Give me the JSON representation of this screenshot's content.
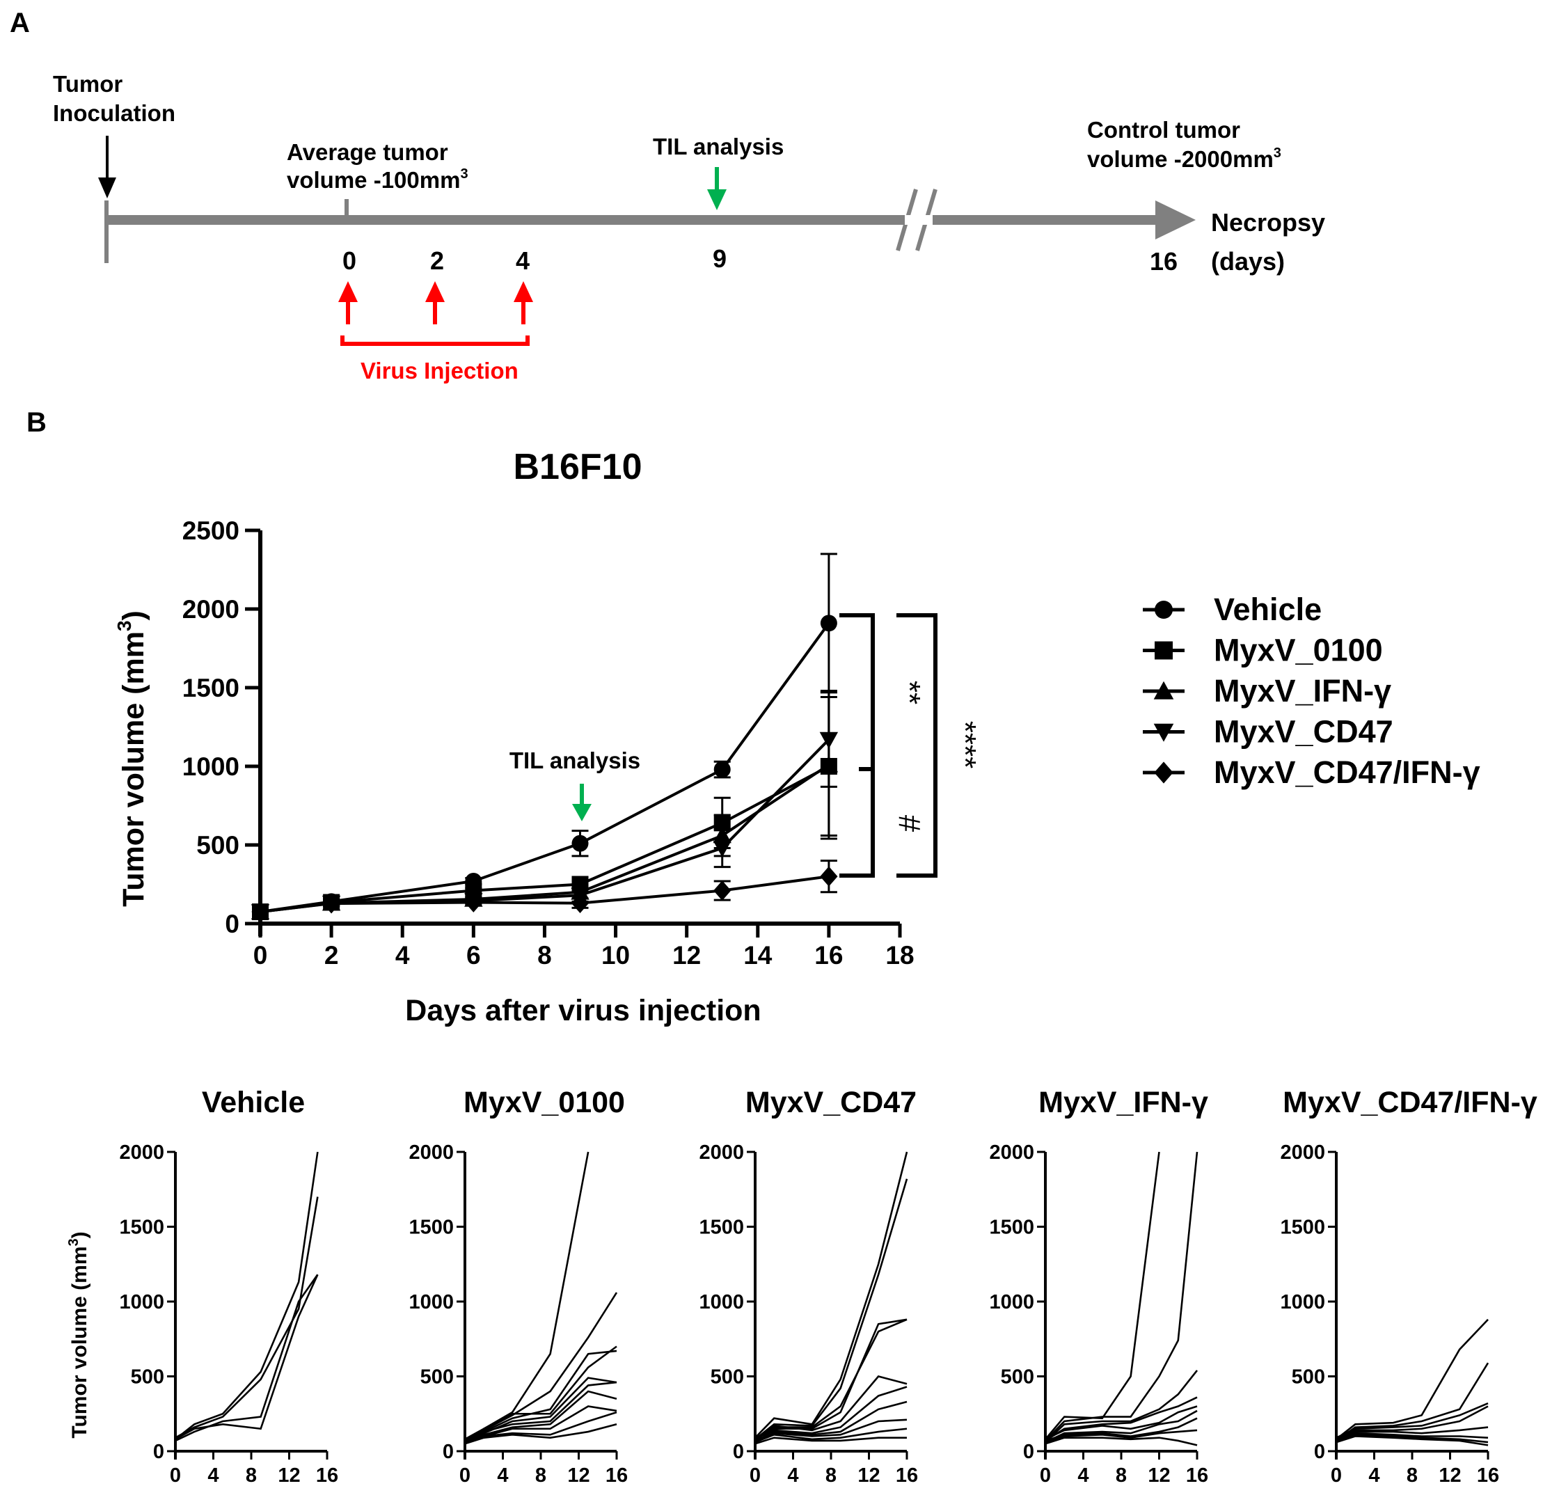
{
  "panel_labels": {
    "a": "A",
    "b": "B"
  },
  "timeline": {
    "inoculation_label": [
      "Tumor",
      "Inoculation"
    ],
    "avg_label": "Average tumor",
    "avg_label2": "volume -100mm",
    "sup3": "3",
    "til_label": "TIL analysis",
    "control_label": "Control tumor",
    "control_label2": "volume -2000mm",
    "necropsy_label": "Necropsy",
    "days_label": "(days)",
    "ticks": [
      "0",
      "2",
      "4",
      "9",
      "16"
    ],
    "virus_label": "Virus Injection",
    "colors": {
      "axis": "#808080",
      "injection": "#ff0000",
      "til": "#00b050",
      "inoculation": "#000000"
    }
  },
  "chart_data": [
    {
      "type": "line",
      "title": "B16F10",
      "xlabel": "Days after virus injection",
      "ylabel": "Tumor volume (mm",
      "ylabel_sup": "3",
      "ylabel_close": ")",
      "xlim": [
        0,
        18
      ],
      "ylim": [
        0,
        2500
      ],
      "xticks": [
        "0",
        "2",
        "4",
        "6",
        "8",
        "10",
        "12",
        "14",
        "16",
        "18"
      ],
      "yticks": [
        "0",
        "500",
        "1000",
        "1500",
        "2000",
        "2500"
      ],
      "x": [
        0,
        2,
        6,
        9,
        13,
        16
      ],
      "series": [
        {
          "name": "Vehicle",
          "marker": "circle",
          "values": [
            75,
            140,
            270,
            510,
            980,
            1910
          ],
          "errors": [
            20,
            20,
            20,
            80,
            50,
            440
          ]
        },
        {
          "name": "MyxV_0100",
          "marker": "square",
          "values": [
            75,
            135,
            210,
            250,
            640,
            1000
          ],
          "errors": [
            15,
            15,
            15,
            40,
            160,
            440
          ]
        },
        {
          "name": "MyxV_IFN-γ",
          "marker": "triangle-up",
          "values": [
            75,
            130,
            155,
            200,
            560,
            1010
          ],
          "errors": [
            15,
            15,
            15,
            40,
            130,
            470
          ]
        },
        {
          "name": "MyxV_CD47",
          "marker": "triangle-down",
          "values": [
            75,
            130,
            145,
            180,
            480,
            1170
          ],
          "errors": [
            15,
            15,
            15,
            40,
            120,
            300
          ]
        },
        {
          "name": "MyxV_CD47/IFN-γ",
          "marker": "diamond",
          "values": [
            75,
            128,
            135,
            130,
            210,
            300
          ],
          "errors": [
            15,
            15,
            15,
            30,
            60,
            100
          ]
        }
      ],
      "annotations": {
        "til": "TIL analysis",
        "til_day": 9,
        "sig_inner": "**",
        "sig_outer": "****",
        "sig_hash": "#"
      },
      "legend": [
        {
          "label": "Vehicle",
          "marker": "circle"
        },
        {
          "label": "MyxV_0100",
          "marker": "square"
        },
        {
          "label": "MyxV_IFN-γ",
          "marker": "triangle-up"
        },
        {
          "label": "MyxV_CD47",
          "marker": "triangle-down"
        },
        {
          "label": "MyxV_CD47/IFN-γ",
          "marker": "diamond"
        }
      ]
    },
    {
      "type": "line",
      "title": "Vehicle",
      "xlim": [
        0,
        16
      ],
      "ylim": [
        0,
        2000
      ],
      "ylabel": "Tumor volume (mm",
      "ylabel_sup": "3",
      "ylabel_close": ")",
      "x": [
        0,
        2,
        5,
        9,
        13,
        15
      ],
      "series": [
        {
          "values": [
            80,
            180,
            250,
            530,
            1130,
            2000
          ]
        },
        {
          "values": [
            90,
            160,
            230,
            480,
            950,
            1700
          ]
        },
        {
          "values": [
            70,
            130,
            200,
            230,
            1000,
            1180
          ]
        },
        {
          "values": [
            80,
            150,
            180,
            150,
            900,
            1180
          ]
        }
      ]
    },
    {
      "type": "line",
      "title": "MyxV_0100",
      "xlim": [
        0,
        16
      ],
      "ylim": [
        0,
        2000
      ],
      "x": [
        0,
        2,
        5,
        9,
        13,
        16
      ],
      "series": [
        {
          "values": [
            80,
            150,
            260,
            650,
            2000,
            null
          ]
        },
        {
          "values": [
            80,
            140,
            240,
            400,
            760,
            1060
          ]
        },
        {
          "values": [
            70,
            130,
            220,
            280,
            650,
            670
          ]
        },
        {
          "values": [
            60,
            150,
            250,
            250,
            560,
            700
          ]
        },
        {
          "values": [
            70,
            120,
            200,
            230,
            490,
            460
          ]
        },
        {
          "values": [
            80,
            130,
            180,
            200,
            440,
            460
          ]
        },
        {
          "values": [
            60,
            110,
            160,
            180,
            400,
            350
          ]
        },
        {
          "values": [
            70,
            100,
            150,
            150,
            300,
            270
          ]
        },
        {
          "values": [
            60,
            100,
            120,
            110,
            200,
            260
          ]
        },
        {
          "values": [
            50,
            90,
            110,
            90,
            130,
            180
          ]
        }
      ]
    },
    {
      "type": "line",
      "title": "MyxV_CD47",
      "xlim": [
        0,
        16
      ],
      "ylim": [
        0,
        2000
      ],
      "x": [
        0,
        2,
        6,
        9,
        13,
        16
      ],
      "series": [
        {
          "values": [
            90,
            220,
            180,
            480,
            1250,
            2000
          ]
        },
        {
          "values": [
            80,
            180,
            170,
            420,
            1180,
            1820
          ]
        },
        {
          "values": [
            70,
            160,
            160,
            300,
            800,
            880
          ]
        },
        {
          "values": [
            80,
            150,
            150,
            260,
            850,
            880
          ]
        },
        {
          "values": [
            70,
            170,
            140,
            200,
            500,
            450
          ]
        },
        {
          "values": [
            60,
            140,
            120,
            160,
            370,
            430
          ]
        },
        {
          "values": [
            90,
            130,
            110,
            130,
            280,
            330
          ]
        },
        {
          "values": [
            70,
            120,
            100,
            110,
            200,
            210
          ]
        },
        {
          "values": [
            60,
            110,
            80,
            90,
            130,
            150
          ]
        },
        {
          "values": [
            50,
            90,
            70,
            70,
            90,
            90
          ]
        }
      ]
    },
    {
      "type": "line",
      "title": "MyxV_IFN-γ",
      "xlim": [
        0,
        16
      ],
      "ylim": [
        0,
        2000
      ],
      "x": [
        0,
        2,
        6,
        9,
        12,
        14,
        16
      ],
      "series": [
        {
          "values": [
            80,
            230,
            220,
            500,
            2000,
            null,
            null
          ]
        },
        {
          "values": [
            70,
            200,
            230,
            230,
            500,
            740,
            2000
          ]
        },
        {
          "values": [
            60,
            180,
            200,
            200,
            280,
            380,
            540
          ]
        },
        {
          "values": [
            70,
            150,
            180,
            190,
            260,
            300,
            360
          ]
        },
        {
          "values": [
            80,
            140,
            170,
            150,
            190,
            260,
            300
          ]
        },
        {
          "values": [
            60,
            120,
            130,
            120,
            180,
            200,
            270
          ]
        },
        {
          "values": [
            70,
            110,
            120,
            100,
            130,
            160,
            220
          ]
        },
        {
          "values": [
            60,
            100,
            110,
            90,
            120,
            130,
            140
          ]
        },
        {
          "values": [
            50,
            90,
            90,
            80,
            90,
            70,
            40
          ]
        }
      ]
    },
    {
      "type": "line",
      "title": "MyxV_CD47/IFN-γ",
      "xlim": [
        0,
        16
      ],
      "ylim": [
        0,
        2000
      ],
      "x": [
        0,
        2,
        6,
        9,
        13,
        16
      ],
      "series": [
        {
          "values": [
            80,
            180,
            190,
            240,
            680,
            880
          ]
        },
        {
          "values": [
            70,
            160,
            170,
            200,
            280,
            590
          ]
        },
        {
          "values": [
            90,
            150,
            160,
            170,
            240,
            320
          ]
        },
        {
          "values": [
            80,
            140,
            140,
            150,
            200,
            300
          ]
        },
        {
          "values": [
            70,
            130,
            130,
            120,
            140,
            160
          ]
        },
        {
          "values": [
            60,
            120,
            110,
            100,
            100,
            90
          ]
        },
        {
          "values": [
            70,
            110,
            100,
            90,
            80,
            60
          ]
        },
        {
          "values": [
            60,
            100,
            90,
            80,
            70,
            40
          ]
        }
      ]
    }
  ],
  "small_ticks": {
    "x": [
      "0",
      "4",
      "8",
      "12",
      "16"
    ],
    "y": [
      "0",
      "500",
      "1000",
      "1500",
      "2000"
    ]
  }
}
